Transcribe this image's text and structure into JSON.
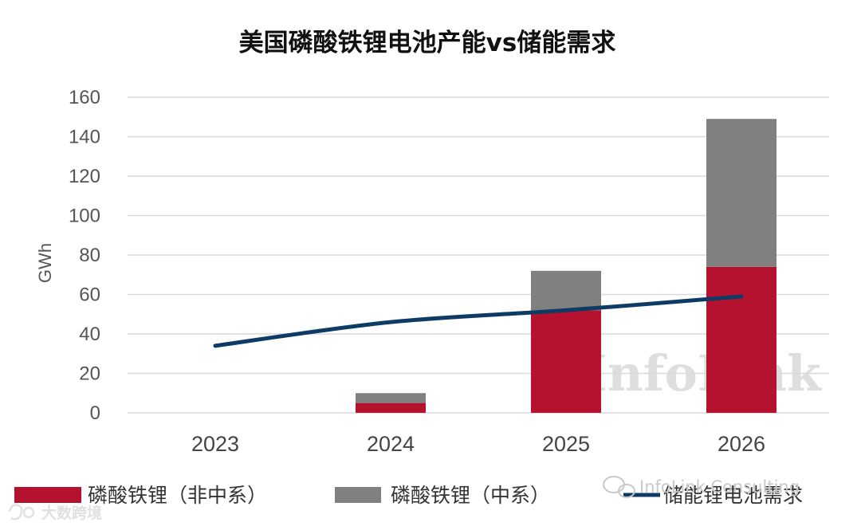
{
  "chart_data": {
    "type": "bar",
    "title": "美国磷酸铁锂电池产能vs储能需求",
    "ylabel": "GWh",
    "xlabel": "",
    "ylim": [
      0,
      160
    ],
    "yticks": [
      0,
      20,
      40,
      60,
      80,
      100,
      120,
      140,
      160
    ],
    "categories": [
      "2023",
      "2024",
      "2025",
      "2026"
    ],
    "grid": true,
    "legend_position": "bottom",
    "series": [
      {
        "name": "磷酸铁锂（非中系）",
        "kind": "bar",
        "stack": "capacity",
        "color": "#b5122f",
        "values": [
          0,
          5,
          52,
          74
        ]
      },
      {
        "name": "磷酸铁锂（中系）",
        "kind": "bar",
        "stack": "capacity",
        "color": "#808080",
        "values": [
          0,
          5,
          20,
          75
        ]
      },
      {
        "name": "储能锂电池需求",
        "kind": "line",
        "color": "#0d3b66",
        "values": [
          34,
          46,
          52,
          59
        ]
      }
    ]
  },
  "watermark": "InfoLink",
  "overlay": {
    "wechat_account": "InfoLink Consulting",
    "corner_label": "大数跨境"
  },
  "colors": {
    "grid": "#d9d9d9",
    "background": "#ffffff"
  }
}
